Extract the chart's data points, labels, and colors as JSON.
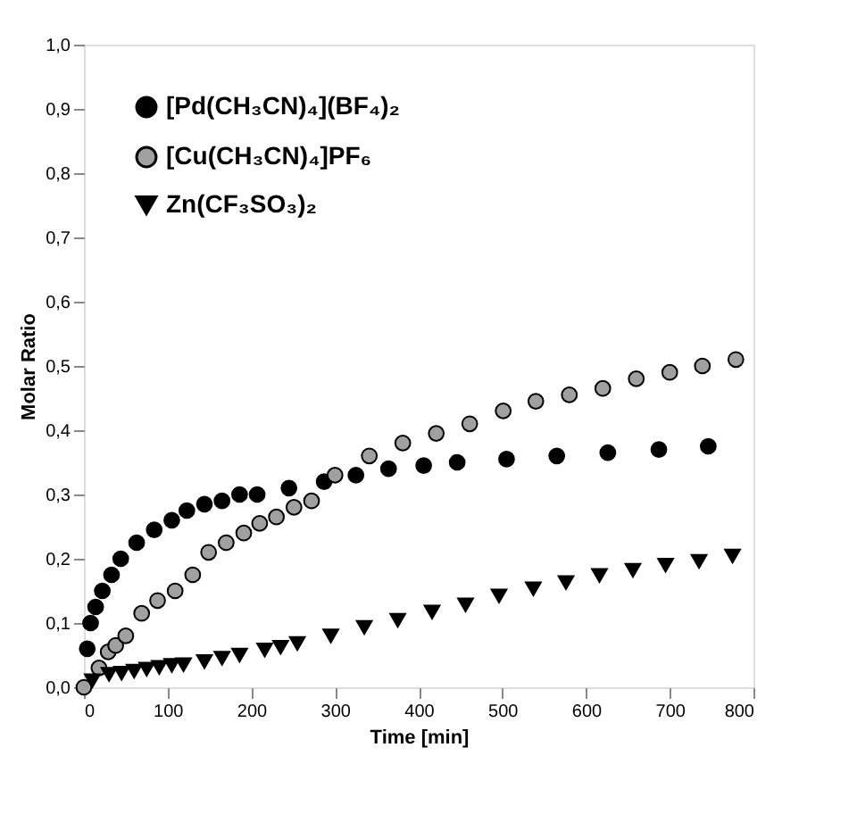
{
  "chart_data": {
    "type": "scatter",
    "xlabel": "Time [min]",
    "ylabel": "Molar Ratio",
    "xlim": [
      0,
      800
    ],
    "xticks": [
      0,
      100,
      200,
      300,
      400,
      500,
      600,
      700,
      800
    ],
    "ylim": [
      0,
      1
    ],
    "yticks": [
      {
        "value": 0,
        "label": "0,0"
      },
      {
        "value": 0.1,
        "label": "0,1"
      },
      {
        "value": 0.2,
        "label": "0,2"
      },
      {
        "value": 0.3,
        "label": "0,3"
      },
      {
        "value": 0.4,
        "label": "0,4"
      },
      {
        "value": 0.5,
        "label": "0,5"
      },
      {
        "value": 0.6,
        "label": "0,6"
      },
      {
        "value": 0.7,
        "label": "0,7"
      },
      {
        "value": 0.8,
        "label": "0,8"
      },
      {
        "value": 0.9,
        "label": "0,9"
      },
      {
        "value": 1,
        "label": "1,0"
      }
    ],
    "grid": false,
    "legend": "top left",
    "series": [
      {
        "name": "[Pd(CH₃CN)₄](BF₄)₂",
        "color": "#000000",
        "marker": "circle",
        "x": [
          4,
          8,
          14,
          22,
          33,
          44,
          63,
          84,
          105,
          123,
          144,
          165,
          186,
          207,
          245,
          287,
          325,
          364,
          406,
          446,
          505,
          565,
          626,
          687,
          746
        ],
        "values": [
          0.06,
          0.1,
          0.125,
          0.15,
          0.175,
          0.2,
          0.225,
          0.245,
          0.26,
          0.275,
          0.285,
          0.29,
          0.3,
          0.3,
          0.31,
          0.32,
          0.33,
          0.34,
          0.345,
          0.35,
          0.355,
          0.36,
          0.365,
          0.37,
          0.375
        ]
      },
      {
        "name": "[Cu(CH₃CN)₄]PF₆",
        "color": "#a0a0a0",
        "marker": "circle",
        "x": [
          0,
          18,
          29,
          38,
          50,
          69,
          88,
          109,
          130,
          149,
          170,
          191,
          210,
          230,
          251,
          272,
          300,
          341,
          381,
          421,
          461,
          501,
          540,
          580,
          620,
          660,
          700,
          739,
          779
        ],
        "values": [
          0.0,
          0.03,
          0.055,
          0.065,
          0.08,
          0.115,
          0.135,
          0.15,
          0.175,
          0.21,
          0.225,
          0.24,
          0.255,
          0.265,
          0.28,
          0.29,
          0.33,
          0.36,
          0.38,
          0.395,
          0.41,
          0.43,
          0.445,
          0.455,
          0.465,
          0.48,
          0.49,
          0.5,
          0.51
        ]
      },
      {
        "name": "Zn(CF₃SO₃)₂",
        "color": "#000000",
        "marker": "triangle",
        "x": [
          10,
          30,
          45,
          60,
          75,
          90,
          105,
          119,
          144,
          165,
          186,
          216,
          235,
          255,
          295,
          335,
          375,
          416,
          456,
          496,
          537,
          576,
          616,
          656,
          695,
          735,
          775
        ],
        "values": [
          0.01,
          0.02,
          0.022,
          0.025,
          0.028,
          0.031,
          0.034,
          0.035,
          0.04,
          0.045,
          0.05,
          0.058,
          0.062,
          0.068,
          0.08,
          0.093,
          0.104,
          0.117,
          0.128,
          0.142,
          0.153,
          0.163,
          0.174,
          0.182,
          0.19,
          0.196,
          0.204
        ]
      }
    ]
  }
}
